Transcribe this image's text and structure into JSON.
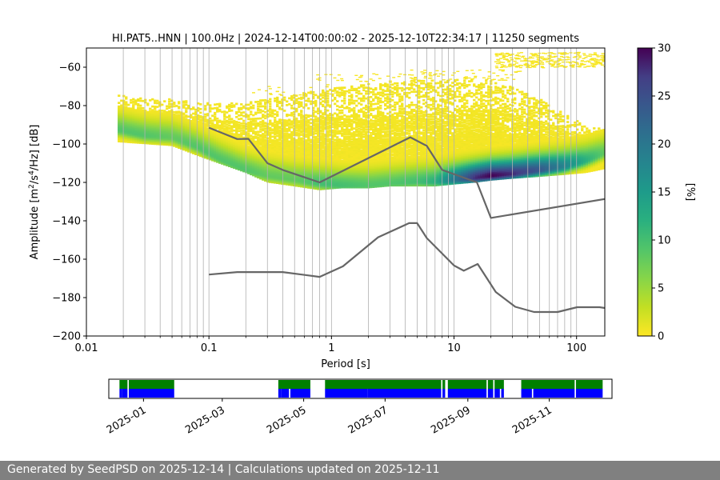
{
  "chart_data": [
    {
      "type": "heatmap",
      "title": "HI.PAT5..HNN | 100.0Hz | 2024-12-14T00:00:02 - 2025-12-10T22:34:17 | 11250 segments",
      "xlabel": "Period [s]",
      "ylabel_parts": [
        "Amplitude [m",
        "2",
        "/s",
        "4",
        "/Hz] [dB]"
      ],
      "x_scale": "log",
      "xlim": [
        0.01,
        170
      ],
      "ylim": [
        -200,
        -50
      ],
      "x_ticks": [
        0.01,
        0.1,
        1,
        10,
        100
      ],
      "x_tick_labels": [
        "0.01",
        "0.1",
        "1",
        "10",
        "100"
      ],
      "y_ticks": [
        -200,
        -180,
        -160,
        -140,
        -120,
        -100,
        -80,
        -60
      ],
      "y_tick_labels": [
        "−200",
        "−180",
        "−160",
        "−140",
        "−120",
        "−100",
        "−80",
        "−60"
      ],
      "grid": "vertical lines at log ticks",
      "colormap": "viridis_r",
      "colorbar": {
        "label": "[%]",
        "range": [
          0,
          30
        ],
        "ticks": [
          0,
          5,
          10,
          15,
          20,
          25,
          30
        ],
        "tick_labels": [
          "0",
          "5",
          "10",
          "15",
          "20",
          "25",
          "30"
        ]
      },
      "density_ridge": {
        "period": [
          0.018,
          0.03,
          0.05,
          0.08,
          0.12,
          0.2,
          0.3,
          0.5,
          0.8,
          1.2,
          2,
          3,
          5,
          7,
          10,
          15,
          20,
          30,
          50,
          80,
          120,
          170
        ],
        "amplitude": [
          -92,
          -95,
          -96,
          -101,
          -107,
          -113,
          -116,
          -118,
          -120,
          -121,
          -121,
          -120,
          -119,
          -119,
          -118,
          -117,
          -116,
          -115,
          -113,
          -111,
          -108,
          -104
        ],
        "peak_percent": [
          9,
          9,
          8,
          9,
          9,
          9,
          8,
          8,
          10,
          10,
          9,
          9,
          10,
          12,
          20,
          28,
          30,
          28,
          24,
          18,
          12,
          8
        ],
        "spread_low": [
          -98,
          -99,
          -100,
          -105,
          -109,
          -114,
          -119,
          -121,
          -123,
          -122,
          -122,
          -121,
          -121,
          -121,
          -120,
          -119,
          -118,
          -117,
          -116,
          -115,
          -114,
          -112
        ],
        "spread_high": [
          -74,
          -76,
          -76,
          -78,
          -78,
          -78,
          -76,
          -74,
          -71,
          -70,
          -68,
          -68,
          -66,
          -67,
          -66,
          -66,
          -66,
          -70,
          -76,
          -84,
          -90,
          -92
        ]
      },
      "series": [
        {
          "name": "",
          "color": "#666666",
          "x": [
            0.1,
            0.17,
            0.21,
            0.3,
            0.4,
            0.8,
            4.4,
            6,
            8,
            15.4,
            20,
            176
          ],
          "y": [
            -91.5,
            -97.4,
            -97.3,
            -110,
            -113.5,
            -120,
            -96.5,
            -101,
            -113.5,
            -120,
            -138.5,
            -128.5
          ]
        },
        {
          "name": "",
          "color": "#666666",
          "x": [
            0.1,
            0.17,
            0.4,
            0.8,
            1.24,
            2.4,
            4.3,
            5,
            6,
            10,
            12,
            15.6,
            21.9,
            31.6,
            45,
            70,
            101,
            154,
            178
          ],
          "y": [
            -168,
            -166.7,
            -166.7,
            -169.2,
            -163.7,
            -148.6,
            -141.2,
            -141.2,
            -149,
            -163.3,
            -166,
            -162.5,
            -177.1,
            -184.8,
            -187.5,
            -187.5,
            -185,
            -185,
            -185.6
          ]
        }
      ]
    },
    {
      "type": "timeline",
      "x_tick_labels": [
        "2025-01",
        "2025-03",
        "2025-05",
        "2025-07",
        "2025-09",
        "2025-11"
      ],
      "x_ticks": [
        "2025-01-01",
        "2025-03-01",
        "2025-05-01",
        "2025-07-01",
        "2025-09-01",
        "2025-11-01"
      ],
      "xlim": [
        "2024-12-06",
        "2025-12-18"
      ],
      "colors": {
        "available": "#0000ff",
        "used": "#008000"
      },
      "available_ranges": [
        [
          "2024-12-14",
          "2024-12-16"
        ],
        [
          "2024-12-16",
          "2024-12-20"
        ],
        [
          "2024-12-21",
          "2025-01-24"
        ],
        [
          "2025-04-12",
          "2025-04-14"
        ],
        [
          "2025-04-14",
          "2025-04-20"
        ],
        [
          "2025-04-21",
          "2025-05-06"
        ],
        [
          "2025-05-17",
          "2025-06-18"
        ],
        [
          "2025-06-18",
          "2025-08-12"
        ],
        [
          "2025-08-13",
          "2025-08-15"
        ],
        [
          "2025-08-17",
          "2025-09-15"
        ],
        [
          "2025-09-16",
          "2025-09-20"
        ],
        [
          "2025-09-21",
          "2025-09-25"
        ],
        [
          "2025-09-26",
          "2025-09-28"
        ],
        [
          "2025-10-11",
          "2025-10-19"
        ],
        [
          "2025-10-20",
          "2025-11-20"
        ],
        [
          "2025-11-21",
          "2025-12-11"
        ]
      ],
      "used_ranges": [
        [
          "2024-12-14",
          "2024-12-20"
        ],
        [
          "2024-12-21",
          "2025-01-24"
        ],
        [
          "2025-04-12",
          "2025-05-06"
        ],
        [
          "2025-05-17",
          "2025-08-12"
        ],
        [
          "2025-08-13",
          "2025-08-15"
        ],
        [
          "2025-08-17",
          "2025-09-15"
        ],
        [
          "2025-09-16",
          "2025-09-20"
        ],
        [
          "2025-09-21",
          "2025-09-28"
        ],
        [
          "2025-10-11",
          "2025-11-20"
        ],
        [
          "2025-11-21",
          "2025-12-11"
        ]
      ]
    }
  ],
  "footer": {
    "text": "Generated by SeedPSD on 2025-12-14 | Calculations updated on 2025-12-11"
  }
}
